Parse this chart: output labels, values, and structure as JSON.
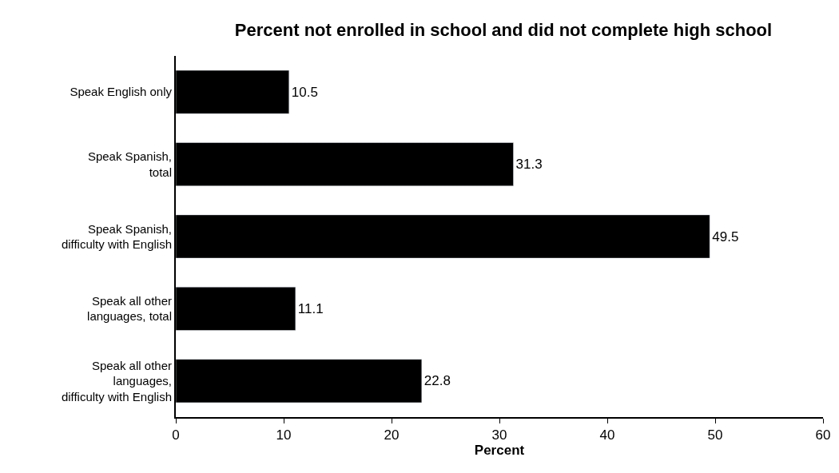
{
  "chart_data": {
    "type": "bar",
    "orientation": "horizontal",
    "title": "Percent not enrolled in school and did not complete high school",
    "xlabel": "Percent",
    "categories": [
      "Speak English only",
      "Speak Spanish,\ntotal",
      "Speak Spanish,\ndifficulty with English",
      "Speak all other\nlanguages, total",
      "Speak all other\nlanguages,\ndifficulty with English"
    ],
    "values": [
      10.5,
      31.3,
      49.5,
      11.1,
      22.8
    ],
    "color": "#000000",
    "xlim": [
      0,
      60
    ],
    "xticks": [
      0,
      10,
      20,
      30,
      40,
      50,
      60
    ],
    "data_labels": true
  }
}
